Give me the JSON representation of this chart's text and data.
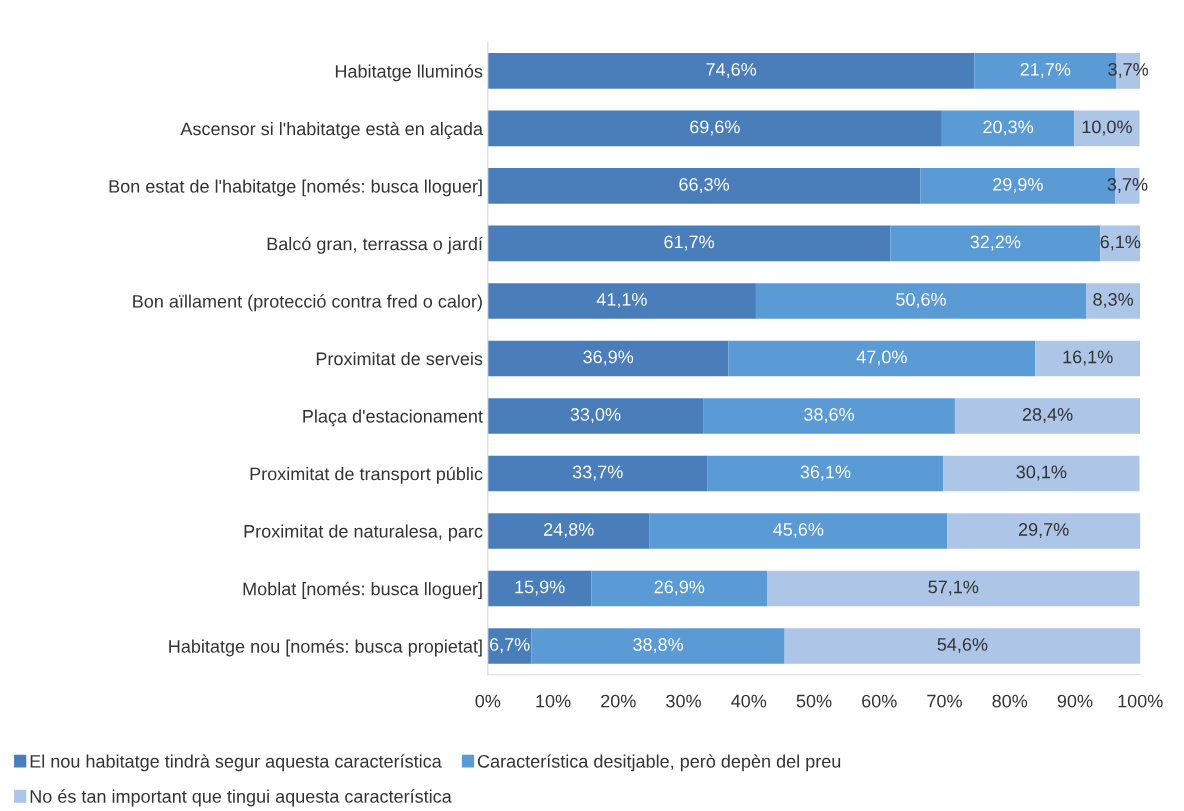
{
  "chart_data": {
    "type": "bar",
    "orientation": "horizontal",
    "stacked": true,
    "categories": [
      "Habitatge lluminós",
      "Ascensor si l'habitatge està en alçada",
      "Bon estat de l'habitatge [només: busca lloguer]",
      "Balcó gran, terrassa o jardí",
      "Bon aïllament (protecció contra fred o calor)",
      "Proximitat de serveis",
      "Plaça d'estacionament",
      "Proximitat de transport públic",
      "Proximitat de naturalesa, parc",
      "Moblat [només: busca lloguer]",
      "Habitatge nou [només: busca propietat]"
    ],
    "series": [
      {
        "name": "El nou habitatge tindrà segur aquesta característica",
        "color": "#4a7ebb",
        "values": [
          74.6,
          69.6,
          66.3,
          61.7,
          41.1,
          36.9,
          33.0,
          33.7,
          24.8,
          15.9,
          6.7
        ],
        "value_labels": [
          "74,6%",
          "69,6%",
          "66,3%",
          "61,7%",
          "41,1%",
          "36,9%",
          "33,0%",
          "33,7%",
          "24,8%",
          "15,9%",
          "6,7%"
        ]
      },
      {
        "name": "Característica desitjable, però depèn del preu",
        "color": "#5b9bd5",
        "values": [
          21.7,
          20.3,
          29.9,
          32.2,
          50.6,
          47.0,
          38.6,
          36.1,
          45.6,
          26.9,
          38.8
        ],
        "value_labels": [
          "21,7%",
          "20,3%",
          "29,9%",
          "32,2%",
          "50,6%",
          "47,0%",
          "38,6%",
          "36,1%",
          "45,6%",
          "26,9%",
          "38,8%"
        ]
      },
      {
        "name": "No és tan important que tingui aquesta característica",
        "color": "#adc5e7",
        "values": [
          3.7,
          10.0,
          3.7,
          6.1,
          8.3,
          16.1,
          28.4,
          30.1,
          29.7,
          57.1,
          54.6
        ],
        "value_labels": [
          "3,7%",
          "10,0%",
          "3,7%",
          "6,1%",
          "8,3%",
          "16,1%",
          "28,4%",
          "30,1%",
          "29,7%",
          "57,1%",
          "54,6%"
        ]
      }
    ],
    "xlim": [
      0,
      100
    ],
    "xticks": [
      {
        "value": 0,
        "label": "0%"
      },
      {
        "value": 10,
        "label": "10%"
      },
      {
        "value": 20,
        "label": "20%"
      },
      {
        "value": 30,
        "label": "30%"
      },
      {
        "value": 40,
        "label": "40%"
      },
      {
        "value": 50,
        "label": "50%"
      },
      {
        "value": 60,
        "label": "60%"
      },
      {
        "value": 70,
        "label": "70%"
      },
      {
        "value": 80,
        "label": "80%"
      },
      {
        "value": 90,
        "label": "90%"
      },
      {
        "value": 100,
        "label": "100%"
      }
    ],
    "legend": "bottom",
    "grid": false
  }
}
